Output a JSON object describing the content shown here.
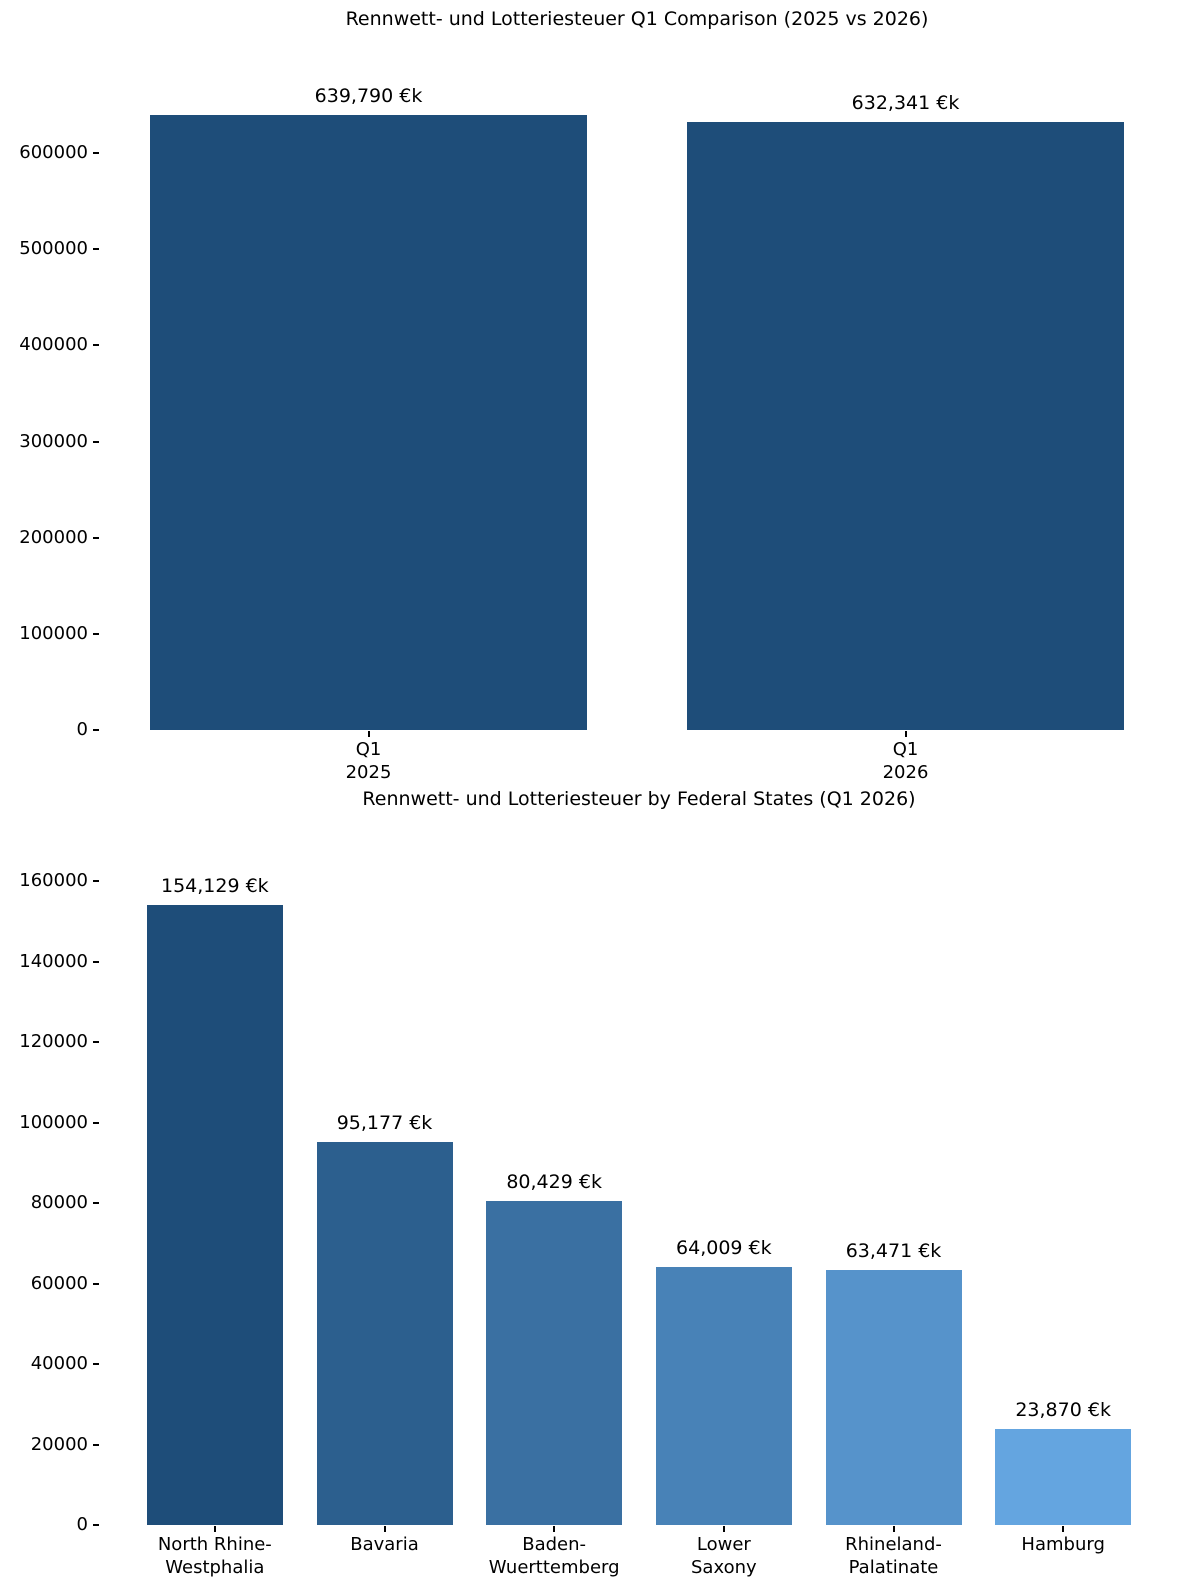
{
  "page": {
    "background": "#ffffff",
    "text_color": "#000000"
  },
  "chart_data": [
    {
      "type": "bar",
      "title": "Rennwett- und Lotteriesteuer Q1 Comparison (2025 vs 2026)",
      "categories": [
        "Q1\n2025",
        "Q1\n2026"
      ],
      "values": [
        639790,
        632341
      ],
      "bar_labels": [
        "639,790 €k",
        "632,341 €k"
      ],
      "bar_colors": [
        "#1e4d79",
        "#1e4d79"
      ],
      "xlabel": "",
      "ylabel": "",
      "yticks": [
        0,
        100000,
        200000,
        300000,
        400000,
        500000,
        600000
      ],
      "ylim": [
        0,
        655000
      ],
      "grid": false,
      "legend": "none"
    },
    {
      "type": "bar",
      "title": "Rennwett- und Lotteriesteuer by Federal States (Q1 2026)",
      "categories": [
        "North Rhine-\nWestphalia",
        "Bavaria",
        "Baden-\nWuerttemberg",
        "Lower\nSaxony",
        "Rhineland-\nPalatinate",
        "Hamburg"
      ],
      "values": [
        154129,
        95177,
        80429,
        64009,
        63471,
        23870
      ],
      "bar_labels": [
        "154,129 €k",
        "95,177 €k",
        "80,429 €k",
        "64,009 €k",
        "63,471 €k",
        "23,870 €k"
      ],
      "bar_colors": [
        "#1e4d79",
        "#2c5f8e",
        "#3a70a2",
        "#4882b7",
        "#5693cb",
        "#64a5e0"
      ],
      "xlabel": "",
      "ylabel": "",
      "yticks": [
        0,
        20000,
        40000,
        60000,
        80000,
        100000,
        120000,
        140000,
        160000
      ],
      "ylim": [
        0,
        172000
      ],
      "grid": false,
      "legend": "none"
    }
  ]
}
